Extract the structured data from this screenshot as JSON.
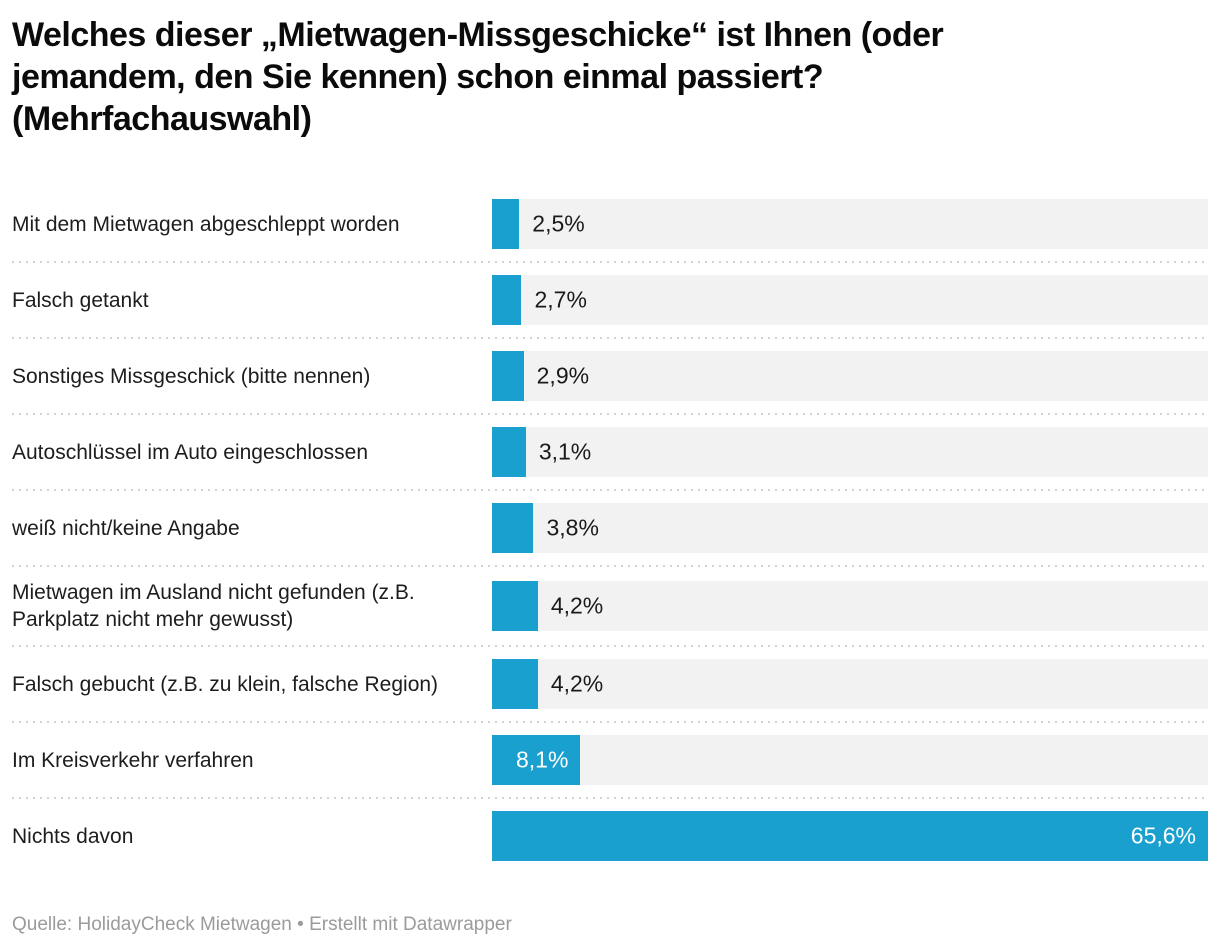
{
  "title": "Welches dieser „Mietwagen-Missgeschicke“ ist Ihnen (oder jemandem, den Sie kennen) schon einmal passiert? (Mehrfachauswahl)",
  "footer": "Quelle: HolidayCheck Mietwagen • Erstellt mit Datawrapper",
  "colors": {
    "bar": "#1aa0ce",
    "track": "#f2f2f2",
    "title_text": "#0b0b0b",
    "label_text": "#1d1d1d",
    "value_outside": "#1a1a1a",
    "value_inside": "#ffffff",
    "separator": "#d2d2d2",
    "footer_text": "#9b9b9b"
  },
  "chart_data": {
    "type": "bar",
    "orientation": "horizontal",
    "title": "Welches dieser „Mietwagen-Missgeschicke“ ist Ihnen (oder jemandem, den Sie kennen) schon einmal passiert? (Mehrfachauswahl)",
    "source": "Quelle: HolidayCheck Mietwagen",
    "created_with": "Erstellt mit Datawrapper",
    "xlim": [
      0,
      65.6
    ],
    "grid": false,
    "legend": false,
    "categories": [
      "Mit dem Mietwagen abgeschleppt worden",
      "Falsch getankt",
      "Sonstiges Missgeschick (bitte nennen)",
      "Autoschlüssel im Auto eingeschlossen",
      "weiß nicht/keine Angabe",
      "Mietwagen im Ausland nicht gefunden (z.B. Parkplatz nicht mehr gewusst)",
      "Falsch gebucht (z.B. zu klein, falsche Region)",
      "Im Kreisverkehr verfahren",
      "Nichts davon"
    ],
    "values": [
      2.5,
      2.7,
      2.9,
      3.1,
      3.8,
      4.2,
      4.2,
      8.1,
      65.6
    ],
    "value_labels": [
      "2,5%",
      "2,7%",
      "2,9%",
      "3,1%",
      "3,8%",
      "4,2%",
      "4,2%",
      "8,1%",
      "65,6%"
    ],
    "label_inside": [
      false,
      false,
      false,
      false,
      false,
      false,
      false,
      true,
      true
    ]
  }
}
